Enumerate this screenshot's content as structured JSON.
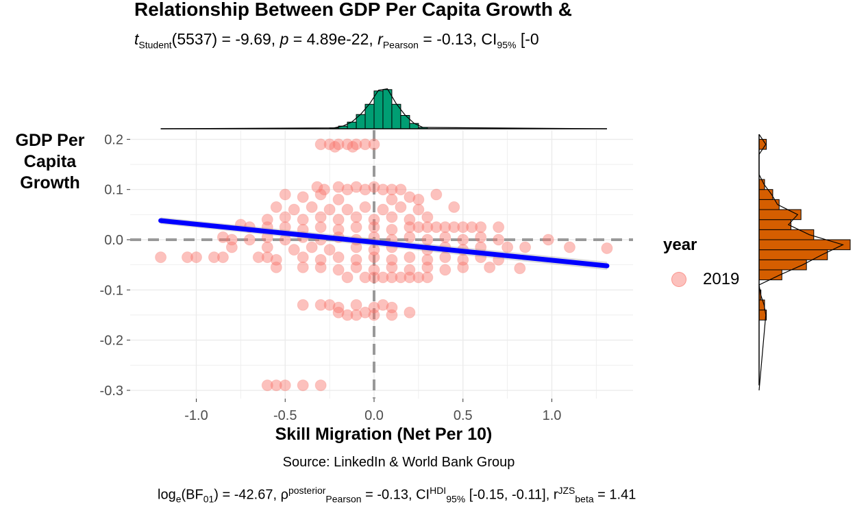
{
  "title": "Relationship Between GDP Per Capita Growth &",
  "subtitle": {
    "t_label": "t",
    "t_sub": "Student",
    "t_rest": "(5537) = -9.69, ",
    "p_label": "p",
    "p_rest": " = 4.89e-22, ",
    "r_label": "r",
    "r_sub": "Pearson",
    "r_rest": " = -0.13, CI",
    "ci_sub": "95%",
    "ci_rest": " [-0"
  },
  "caption": "Source: LinkedIn & World Bank Group",
  "footer": {
    "a": "log",
    "a_sub": "e",
    "b": "(BF",
    "b_sub": "01",
    "c": ") = -42.67, ρ",
    "c_sup": "posterior",
    "c_sub": "Pearson",
    "d": " = -0.13, CI",
    "d_sup": "HDI",
    "d_sub": "95%",
    "e": " [-0.15, -0.11], r",
    "e_sup": "JZS",
    "e_sub": "beta",
    "f": " = 1.41"
  },
  "legend": {
    "title": "year",
    "label": "2019"
  },
  "colors": {
    "points": "#F8766D",
    "fit_line": "#0000FF",
    "x_hist": "#009E73",
    "y_hist": "#D55E00",
    "ref_lines": "#999999",
    "grid": "#EBEBEB"
  },
  "chart_data": {
    "type": "scatter",
    "xlabel": "Skill Migration (Net Per 10)",
    "ylabel": "GDP Per Capita Growth",
    "xlim": [
      -1.25,
      1.45
    ],
    "ylim": [
      -0.31,
      0.215
    ],
    "x_ticks": [
      -1.0,
      -0.5,
      0.0,
      0.5,
      1.0
    ],
    "x_tick_labels": [
      "-1.0",
      "-0.5",
      "0.0",
      "0.5",
      "1.0"
    ],
    "y_ticks": [
      -0.3,
      -0.2,
      -0.1,
      0.0,
      0.1,
      0.2
    ],
    "y_tick_labels": [
      "-0.3",
      "-0.2",
      "-0.1",
      "0.0",
      "0.1",
      "0.2"
    ],
    "grid": true,
    "reference_lines": {
      "x": 0.0,
      "y": 0.0
    },
    "fit_line": {
      "x": [
        -1.2,
        1.31
      ],
      "y": [
        0.038,
        -0.052
      ]
    },
    "series": [
      {
        "name": "2019",
        "points": [
          [
            -0.3,
            0.19
          ],
          [
            -0.25,
            0.19
          ],
          [
            -0.2,
            0.19
          ],
          [
            -0.15,
            0.19
          ],
          [
            -0.1,
            0.19
          ],
          [
            -0.05,
            0.19
          ],
          [
            0.0,
            0.19
          ],
          [
            -0.22,
            0.185
          ],
          [
            -0.12,
            0.185
          ],
          [
            -0.32,
            0.105
          ],
          [
            -0.28,
            0.1
          ],
          [
            -0.2,
            0.105
          ],
          [
            -0.15,
            0.1
          ],
          [
            -0.1,
            0.105
          ],
          [
            -0.05,
            0.1
          ],
          [
            0.0,
            0.105
          ],
          [
            0.05,
            0.1
          ],
          [
            0.1,
            0.1
          ],
          [
            0.15,
            0.1
          ],
          [
            -0.5,
            0.09
          ],
          [
            -0.4,
            0.085
          ],
          [
            -0.3,
            0.09
          ],
          [
            -0.2,
            0.08
          ],
          [
            0.1,
            0.08
          ],
          [
            0.2,
            0.085
          ],
          [
            0.25,
            0.08
          ],
          [
            0.35,
            0.09
          ],
          [
            -0.55,
            0.065
          ],
          [
            -0.45,
            0.06
          ],
          [
            -0.35,
            0.065
          ],
          [
            -0.25,
            0.06
          ],
          [
            -0.15,
            0.06
          ],
          [
            -0.05,
            0.065
          ],
          [
            0.05,
            0.06
          ],
          [
            0.15,
            0.065
          ],
          [
            0.25,
            0.06
          ],
          [
            0.45,
            0.065
          ],
          [
            -0.6,
            0.04
          ],
          [
            -0.5,
            0.045
          ],
          [
            -0.4,
            0.04
          ],
          [
            -0.3,
            0.045
          ],
          [
            -0.2,
            0.04
          ],
          [
            -0.1,
            0.045
          ],
          [
            0.0,
            0.04
          ],
          [
            0.1,
            0.045
          ],
          [
            0.2,
            0.04
          ],
          [
            0.3,
            0.045
          ],
          [
            -0.75,
            0.03
          ],
          [
            -0.7,
            0.025
          ],
          [
            -0.6,
            0.025
          ],
          [
            -0.5,
            0.025
          ],
          [
            -0.4,
            0.02
          ],
          [
            -0.3,
            0.025
          ],
          [
            -0.2,
            0.02
          ],
          [
            -0.1,
            0.025
          ],
          [
            0.0,
            0.025
          ],
          [
            0.1,
            0.02
          ],
          [
            0.2,
            0.025
          ],
          [
            0.25,
            0.025
          ],
          [
            0.3,
            0.025
          ],
          [
            0.35,
            0.025
          ],
          [
            0.4,
            0.025
          ],
          [
            0.45,
            0.025
          ],
          [
            0.5,
            0.025
          ],
          [
            0.55,
            0.025
          ],
          [
            0.6,
            0.025
          ],
          [
            0.7,
            0.025
          ],
          [
            -0.85,
            0.005
          ],
          [
            -0.8,
            0.0
          ],
          [
            -0.7,
            0.0
          ],
          [
            -0.6,
            0.005
          ],
          [
            -0.5,
            0.0
          ],
          [
            -0.4,
            0.005
          ],
          [
            -0.3,
            0.0
          ],
          [
            -0.2,
            0.005
          ],
          [
            -0.1,
            0.0
          ],
          [
            0.0,
            0.005
          ],
          [
            0.1,
            0.0
          ],
          [
            0.2,
            0.005
          ],
          [
            0.3,
            0.0
          ],
          [
            0.4,
            0.005
          ],
          [
            0.5,
            0.0
          ],
          [
            0.6,
            0.005
          ],
          [
            0.7,
            0.0
          ],
          [
            0.98,
            0.0
          ],
          [
            -0.8,
            -0.015
          ],
          [
            -0.6,
            -0.015
          ],
          [
            -0.45,
            -0.02
          ],
          [
            -0.35,
            -0.015
          ],
          [
            -0.25,
            -0.02
          ],
          [
            -0.1,
            -0.015
          ],
          [
            0.0,
            -0.02
          ],
          [
            0.1,
            -0.015
          ],
          [
            0.3,
            -0.02
          ],
          [
            0.4,
            -0.015
          ],
          [
            0.5,
            -0.02
          ],
          [
            0.6,
            -0.015
          ],
          [
            0.75,
            -0.015
          ],
          [
            0.85,
            -0.015
          ],
          [
            1.1,
            -0.015
          ],
          [
            1.31,
            -0.017
          ],
          [
            -1.2,
            -0.035
          ],
          [
            -1.05,
            -0.035
          ],
          [
            -1.0,
            -0.035
          ],
          [
            -0.9,
            -0.035
          ],
          [
            -0.85,
            -0.035
          ],
          [
            -0.65,
            -0.035
          ],
          [
            -0.6,
            -0.035
          ],
          [
            -0.55,
            -0.04
          ],
          [
            -0.4,
            -0.035
          ],
          [
            -0.3,
            -0.04
          ],
          [
            -0.2,
            -0.035
          ],
          [
            -0.1,
            -0.04
          ],
          [
            0.0,
            -0.035
          ],
          [
            0.1,
            -0.04
          ],
          [
            0.2,
            -0.035
          ],
          [
            0.3,
            -0.04
          ],
          [
            0.4,
            -0.035
          ],
          [
            0.5,
            -0.04
          ],
          [
            0.6,
            -0.035
          ],
          [
            0.7,
            -0.04
          ],
          [
            -0.55,
            -0.055
          ],
          [
            -0.4,
            -0.055
          ],
          [
            -0.3,
            -0.055
          ],
          [
            -0.2,
            -0.06
          ],
          [
            -0.1,
            -0.055
          ],
          [
            0.0,
            -0.06
          ],
          [
            0.1,
            -0.055
          ],
          [
            0.2,
            -0.06
          ],
          [
            0.3,
            -0.055
          ],
          [
            0.4,
            -0.06
          ],
          [
            0.5,
            -0.055
          ],
          [
            0.65,
            -0.055
          ],
          [
            0.82,
            -0.057
          ],
          [
            -0.15,
            -0.075
          ],
          [
            -0.05,
            -0.075
          ],
          [
            0.0,
            -0.075
          ],
          [
            0.05,
            -0.075
          ],
          [
            0.1,
            -0.075
          ],
          [
            0.15,
            -0.075
          ],
          [
            0.2,
            -0.075
          ],
          [
            0.25,
            -0.075
          ],
          [
            0.3,
            -0.075
          ],
          [
            -0.4,
            -0.13
          ],
          [
            -0.3,
            -0.13
          ],
          [
            -0.25,
            -0.13
          ],
          [
            -0.2,
            -0.135
          ],
          [
            -0.1,
            -0.13
          ],
          [
            0.0,
            -0.135
          ],
          [
            0.05,
            -0.13
          ],
          [
            0.1,
            -0.135
          ],
          [
            -0.2,
            -0.145
          ],
          [
            -0.15,
            -0.15
          ],
          [
            -0.1,
            -0.15
          ],
          [
            -0.05,
            -0.145
          ],
          [
            0.0,
            -0.15
          ],
          [
            0.1,
            -0.15
          ],
          [
            0.2,
            -0.145
          ],
          [
            -0.6,
            -0.29
          ],
          [
            -0.55,
            -0.29
          ],
          [
            -0.5,
            -0.29
          ],
          [
            -0.4,
            -0.29
          ],
          [
            -0.3,
            -0.29
          ]
        ]
      }
    ],
    "x_marginal_histogram": {
      "bin_edges": [
        -0.25,
        -0.2,
        -0.15,
        -0.1,
        -0.05,
        0.0,
        0.05,
        0.1,
        0.15,
        0.2,
        0.25,
        0.3
      ],
      "counts": [
        0.02,
        0.06,
        0.15,
        0.32,
        0.55,
        0.85,
        0.88,
        0.55,
        0.3,
        0.12,
        0.03
      ]
    },
    "y_marginal_histogram": {
      "bin_edges": [
        -0.16,
        -0.14,
        -0.12,
        -0.1,
        -0.08,
        -0.06,
        -0.04,
        -0.02,
        0.0,
        0.02,
        0.04,
        0.06,
        0.08,
        0.1,
        0.12,
        0.14,
        0.16,
        0.18,
        0.2
      ],
      "counts": [
        0.08,
        0.06,
        0.02,
        0.0,
        0.25,
        0.52,
        0.75,
        1.0,
        0.6,
        0.35,
        0.46,
        0.22,
        0.15,
        0.06,
        0.0,
        0.0,
        0.0,
        0.08
      ]
    }
  }
}
